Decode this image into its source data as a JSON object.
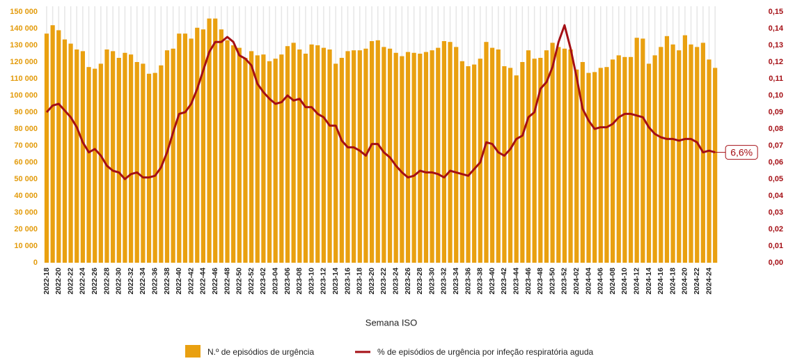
{
  "chart_data": {
    "type": "bar_line",
    "x_label": "Semana ISO",
    "categories": [
      "2022-18",
      null,
      "2022-20",
      null,
      "2022-22",
      null,
      "2022-24",
      null,
      "2022-26",
      null,
      "2022-28",
      null,
      "2022-30",
      null,
      "2022-32",
      null,
      "2022-34",
      null,
      "2022-36",
      null,
      "2022-38",
      null,
      "2022-40",
      null,
      "2022-42",
      null,
      "2022-44",
      null,
      "2022-46",
      null,
      "2022-48",
      null,
      "2022-50",
      null,
      "2022-52",
      null,
      "2023-02",
      null,
      "2023-04",
      null,
      "2023-06",
      null,
      "2023-08",
      null,
      "2023-10",
      null,
      "2023-12",
      null,
      "2023-14",
      null,
      "2023-16",
      null,
      "2023-18",
      null,
      "2023-20",
      null,
      "2023-22",
      null,
      "2023-24",
      null,
      "2023-26",
      null,
      "2023-28",
      null,
      "2023-30",
      null,
      "2023-32",
      null,
      "2023-34",
      null,
      "2023-36",
      null,
      "2023-38",
      null,
      "2023-40",
      null,
      "2023-42",
      null,
      "2023-44",
      null,
      "2023-46",
      null,
      "2023-48",
      null,
      "2023-50",
      null,
      "2023-52",
      null,
      "2024-02",
      null,
      "2024-04",
      null,
      "2024-06",
      null,
      "2024-08",
      null,
      "2024-10",
      null,
      "2024-12",
      null,
      "2024-14",
      null,
      "2024-16",
      null,
      "2024-18",
      null,
      "2024-20",
      null,
      "2024-22",
      null,
      "2024-24",
      null
    ],
    "series": [
      {
        "name": "N.º de episódios de urgência",
        "color": "#e9a010",
        "values": [
          137000,
          142000,
          139000,
          133500,
          131000,
          127500,
          126500,
          117000,
          116000,
          119000,
          127500,
          126500,
          122500,
          125500,
          124500,
          120000,
          119000,
          113000,
          113500,
          118000,
          127000,
          128000,
          137000,
          137000,
          134000,
          140500,
          139500,
          146000,
          146000,
          139500,
          133000,
          130000,
          128500,
          122500,
          126500,
          124000,
          124500,
          120500,
          122000,
          124500,
          129500,
          131500,
          127500,
          125000,
          130500,
          130000,
          128500,
          127500,
          119000,
          122500,
          126500,
          127000,
          127000,
          128000,
          132500,
          133000,
          129000,
          128000,
          125500,
          123500,
          126000,
          125500,
          125000,
          126000,
          127000,
          128500,
          132500,
          132000,
          129000,
          120500,
          117500,
          118500,
          122000,
          132000,
          128500,
          127500,
          117500,
          116500,
          112000,
          120000,
          127000,
          122000,
          122500,
          127000,
          131500,
          129000,
          128000,
          127500,
          115500,
          120000,
          113500,
          114000,
          116500,
          117000,
          121500,
          124000,
          123000,
          123000,
          134500,
          134000,
          119000,
          124000,
          129000,
          135500,
          130500,
          127000,
          136000,
          130500,
          129000,
          131500,
          121500,
          116500
        ]
      },
      {
        "name": "% de episódios de urgência por infeção respiratória aguda",
        "color": "#a50f15",
        "axis": "y2",
        "end_label": "6,6%",
        "values": [
          0.09,
          0.094,
          0.095,
          0.091,
          0.087,
          0.081,
          0.072,
          0.066,
          0.068,
          0.064,
          0.058,
          0.055,
          0.054,
          0.05,
          0.053,
          0.054,
          0.051,
          0.051,
          0.052,
          0.057,
          0.066,
          0.078,
          0.089,
          0.09,
          0.095,
          0.104,
          0.115,
          0.126,
          0.132,
          0.132,
          0.135,
          0.132,
          0.124,
          0.122,
          0.118,
          0.107,
          0.102,
          0.098,
          0.095,
          0.096,
          0.1,
          0.097,
          0.098,
          0.093,
          0.093,
          0.089,
          0.087,
          0.082,
          0.082,
          0.073,
          0.069,
          0.069,
          0.067,
          0.064,
          0.071,
          0.071,
          0.066,
          0.063,
          0.058,
          0.054,
          0.051,
          0.052,
          0.055,
          0.054,
          0.054,
          0.053,
          0.051,
          0.055,
          0.054,
          0.053,
          0.052,
          0.056,
          0.06,
          0.072,
          0.071,
          0.066,
          0.064,
          0.068,
          0.074,
          0.076,
          0.087,
          0.09,
          0.104,
          0.108,
          0.117,
          0.132,
          0.142,
          0.128,
          0.111,
          0.092,
          0.085,
          0.08,
          0.081,
          0.081,
          0.083,
          0.087,
          0.089,
          0.089,
          0.088,
          0.087,
          0.081,
          0.077,
          0.075,
          0.074,
          0.074,
          0.073,
          0.074,
          0.074,
          0.072,
          0.066,
          0.067,
          0.066
        ]
      }
    ],
    "ylim": [
      0,
      150000
    ],
    "yticks": [
      0,
      {
        "value": 10000,
        "label": "10 000"
      },
      {
        "value": 20000,
        "label": "20 000"
      },
      {
        "value": 30000,
        "label": "30 000"
      },
      {
        "value": 40000,
        "label": "40 000"
      },
      {
        "value": 50000,
        "label": "50 000"
      },
      {
        "value": 60000,
        "label": "60 000"
      },
      {
        "value": 70000,
        "label": "70 000"
      },
      {
        "value": 80000,
        "label": "80 000"
      },
      {
        "value": 90000,
        "label": "90 000"
      },
      {
        "value": 100000,
        "label": "100 000"
      },
      {
        "value": 110000,
        "label": "110 000"
      },
      {
        "value": 120000,
        "label": "120 000"
      },
      {
        "value": 130000,
        "label": "130 000"
      },
      {
        "value": 140000,
        "label": "140 000"
      },
      {
        "value": 150000,
        "label": "150 000"
      }
    ],
    "y2lim": [
      0,
      0.15
    ],
    "y2ticks": [
      {
        "value": 0,
        "label": "0,00"
      },
      {
        "value": 0.01,
        "label": "0,01"
      },
      {
        "value": 0.02,
        "label": "0,02"
      },
      {
        "value": 0.03,
        "label": "0,03"
      },
      {
        "value": 0.04,
        "label": "0,04"
      },
      {
        "value": 0.05,
        "label": "0,05"
      },
      {
        "value": 0.06,
        "label": "0,06"
      },
      {
        "value": 0.07,
        "label": "0,07"
      },
      {
        "value": 0.08,
        "label": "0,08"
      },
      {
        "value": 0.09,
        "label": "0,09"
      },
      {
        "value": 0.1,
        "label": "0,10"
      },
      {
        "value": 0.11,
        "label": "0,11"
      },
      {
        "value": 0.12,
        "label": "0,12"
      },
      {
        "value": 0.13,
        "label": "0,13"
      },
      {
        "value": 0.14,
        "label": "0,14"
      },
      {
        "value": 0.15,
        "label": "0,15"
      }
    ],
    "grid": true
  }
}
